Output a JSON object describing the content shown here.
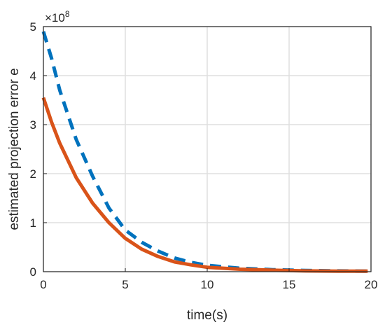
{
  "chart_data": {
    "type": "line",
    "xlabel": "time(s)",
    "ylabel": "estimated projection error e",
    "xlim": [
      0,
      20
    ],
    "ylim": [
      0,
      5
    ],
    "xticks": [
      "0",
      "5",
      "10",
      "15",
      "20"
    ],
    "yticks": [
      "0",
      "1",
      "2",
      "3",
      "4",
      "5"
    ],
    "y_multiplier": "×10",
    "y_exponent": "8",
    "grid": true,
    "series": [
      {
        "color": "#0072BD",
        "style": "dashed",
        "x": [
          0,
          0.5,
          1,
          2,
          3,
          4,
          5,
          6,
          7,
          8,
          9,
          10,
          12,
          14,
          16,
          18,
          19.8
        ],
        "y": [
          4.9,
          4.35,
          3.7,
          2.7,
          1.95,
          1.3,
          0.85,
          0.6,
          0.42,
          0.28,
          0.19,
          0.13,
          0.07,
          0.04,
          0.025,
          0.015,
          0.01
        ]
      },
      {
        "color": "#D95319",
        "style": "solid",
        "x": [
          0,
          0.5,
          1,
          2,
          3,
          4,
          5,
          6,
          7,
          8,
          9,
          10,
          12,
          14,
          16,
          18,
          19.8
        ],
        "y": [
          3.55,
          3.05,
          2.62,
          1.92,
          1.4,
          1.0,
          0.68,
          0.46,
          0.31,
          0.2,
          0.14,
          0.09,
          0.05,
          0.03,
          0.015,
          0.01,
          0.01
        ]
      }
    ]
  }
}
